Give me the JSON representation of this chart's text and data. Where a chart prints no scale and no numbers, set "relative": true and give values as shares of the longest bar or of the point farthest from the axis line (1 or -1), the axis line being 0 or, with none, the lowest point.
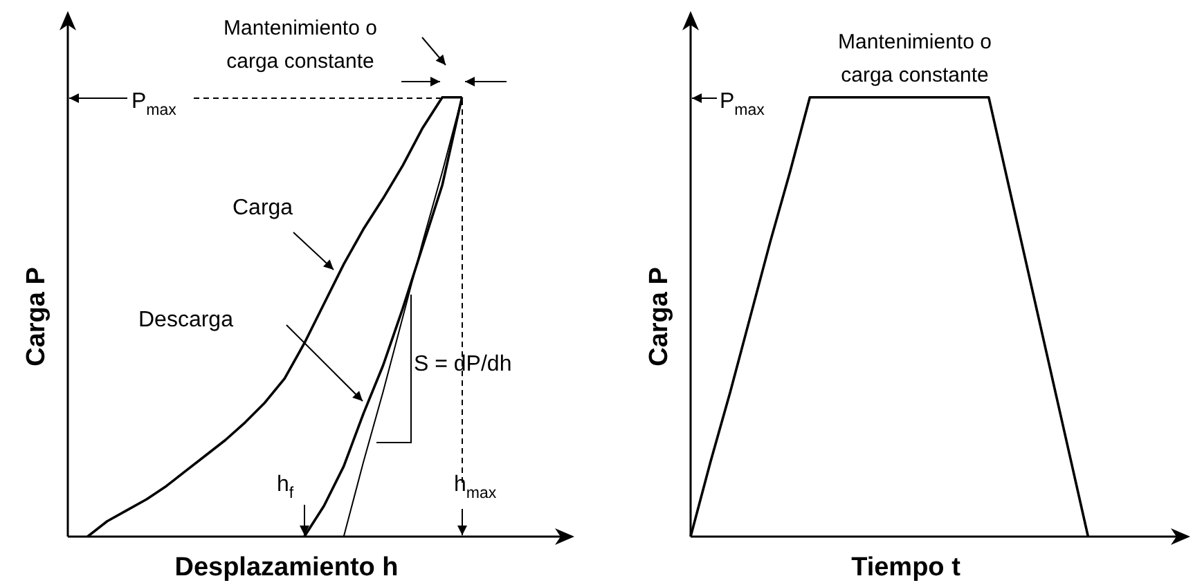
{
  "chart_data": [
    {
      "type": "line",
      "relative": true,
      "xlabel": "Desplazamiento h",
      "ylabel": "Carga P",
      "marker": "none",
      "line_style": "solid",
      "categories": [
        null,
        null,
        null,
        null,
        null,
        null,
        null,
        null,
        null,
        null,
        null,
        null,
        null,
        null,
        null,
        null,
        null,
        null,
        null,
        null,
        null,
        null,
        null,
        null,
        null,
        null
      ],
      "series": [
        {
          "color": "#000000",
          "values": [
            null,
            0,
            0.035,
            0.06,
            0.085,
            0.115,
            0.15,
            0.185,
            0.22,
            0.26,
            0.305,
            0.36,
            0.44,
            0.53,
            0.62,
            0.7,
            0.77,
            0.845,
            0.93,
            1,
            1,
            null,
            null,
            null,
            null,
            null
          ]
        },
        {
          "color": "#000000",
          "values": [
            null,
            null,
            null,
            null,
            null,
            null,
            null,
            null,
            null,
            null,
            null,
            null,
            0,
            0.07,
            0.16,
            0.28,
            0.39,
            0.52,
            0.66,
            0.8,
            1,
            null,
            null,
            null,
            null,
            null
          ]
        },
        {
          "color": "#000000",
          "values": [
            null,
            null,
            null,
            null,
            null,
            null,
            null,
            null,
            null,
            null,
            null,
            null,
            null,
            null,
            0,
            0.17,
            0.33,
            0.5,
            0.67,
            0.83,
            1,
            null,
            null,
            null,
            null,
            null
          ]
        }
      ],
      "annotations": [
        "Mantenimiento o\ncarga constante",
        "Carga",
        "Descarga",
        "S = dP/dh",
        "h$_{f}$",
        "P$_{max}$",
        "h$_{max}$"
      ]
    },
    {
      "type": "line",
      "relative": true,
      "xlabel": "Tiempo t",
      "ylabel": "Carga P",
      "marker": "none",
      "line_style": "solid",
      "categories": [
        null,
        null,
        null,
        null,
        null,
        null,
        null,
        null,
        null,
        null,
        null,
        null,
        null,
        null,
        null,
        null,
        null,
        null,
        null,
        null,
        null,
        null,
        null,
        null,
        null,
        null
      ],
      "series": [
        {
          "color": "#000000",
          "values": [
            0,
            0.17,
            0.33,
            0.5,
            0.67,
            0.83,
            1,
            1,
            1,
            1,
            1,
            1,
            1,
            1,
            1,
            1,
            0.8,
            0.6,
            0.4,
            0.2,
            0,
            null,
            null,
            null,
            null,
            null
          ]
        }
      ],
      "annotations": [
        "P$_{max}$",
        "Mantenimiento o\ncarga constante"
      ]
    }
  ]
}
